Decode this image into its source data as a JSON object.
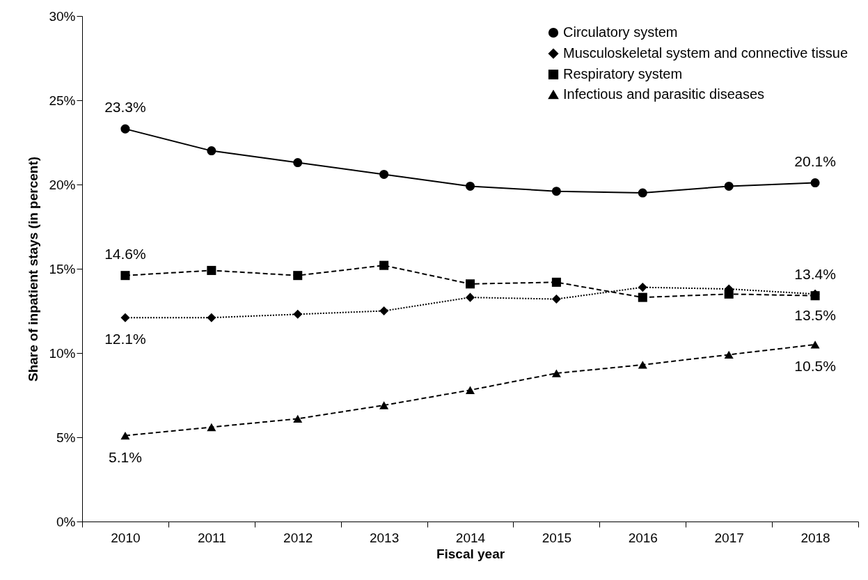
{
  "chart_data": {
    "type": "line",
    "xlabel": "Fiscal year",
    "ylabel": "Share of inpatient stays (in percent)",
    "categories": [
      "2010",
      "2011",
      "2012",
      "2013",
      "2014",
      "2015",
      "2016",
      "2017",
      "2018"
    ],
    "series": [
      {
        "name": "Circulatory system",
        "color": "#000000",
        "marker": "circle",
        "line_style": "solid",
        "values": [
          23.3,
          22.0,
          21.3,
          20.6,
          19.9,
          19.6,
          19.5,
          19.9,
          20.1
        ],
        "value_labels": [
          "23.3%",
          null,
          null,
          null,
          null,
          null,
          null,
          null,
          "20.1%"
        ]
      },
      {
        "name": "Musculoskeletal system and connective tissue",
        "color": "#000000",
        "marker": "diamond",
        "line_style": "dotted",
        "values": [
          12.1,
          12.1,
          12.3,
          12.5,
          13.3,
          13.2,
          13.9,
          13.8,
          13.5
        ],
        "value_labels": [
          "12.1%",
          null,
          null,
          null,
          null,
          null,
          null,
          null,
          "13.5%"
        ]
      },
      {
        "name": "Respiratory system",
        "color": "#000000",
        "marker": "square",
        "line_style": "dashed",
        "values": [
          14.6,
          14.9,
          14.6,
          15.2,
          14.1,
          14.2,
          13.3,
          13.5,
          13.4
        ],
        "value_labels": [
          "14.6%",
          null,
          null,
          null,
          null,
          null,
          null,
          null,
          "13.4%"
        ]
      },
      {
        "name": "Infectious and parasitic diseases",
        "color": "#000000",
        "marker": "triangle",
        "line_style": "dashed",
        "values": [
          5.1,
          5.6,
          6.1,
          6.9,
          7.8,
          8.8,
          9.3,
          9.9,
          10.5
        ],
        "value_labels": [
          "5.1%",
          null,
          null,
          null,
          null,
          null,
          null,
          null,
          "10.5%"
        ]
      }
    ],
    "ylim": [
      0,
      30
    ],
    "yticks": [
      {
        "value": 0,
        "label": "0%"
      },
      {
        "value": 5,
        "label": "5%"
      },
      {
        "value": 10,
        "label": "10%"
      },
      {
        "value": 15,
        "label": "15%"
      },
      {
        "value": 20,
        "label": "20%"
      },
      {
        "value": 25,
        "label": "25%"
      },
      {
        "value": 30,
        "label": "30%"
      }
    ],
    "grid": false,
    "legend": "top right"
  }
}
